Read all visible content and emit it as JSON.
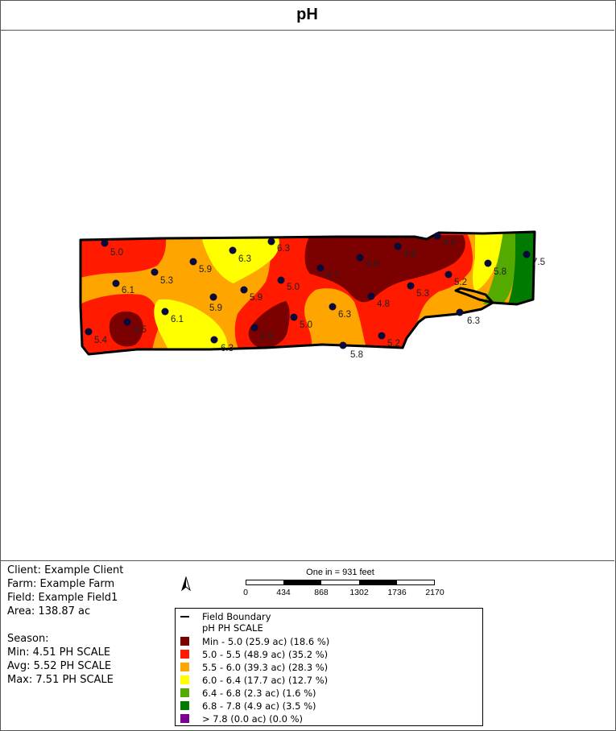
{
  "title": "pH",
  "map": {
    "sample_points": [
      {
        "label": "5.0"
      },
      {
        "label": "5.9"
      },
      {
        "label": "6.3"
      },
      {
        "label": "6.3"
      },
      {
        "label": "4.7"
      },
      {
        "label": "4.8"
      },
      {
        "label": "4.6"
      },
      {
        "label": "4.5"
      },
      {
        "label": "7.5"
      },
      {
        "label": "5.8"
      },
      {
        "label": "6.1"
      },
      {
        "label": "5.3"
      },
      {
        "label": "5.0"
      },
      {
        "label": "5.3"
      },
      {
        "label": "5.2"
      },
      {
        "label": "5.9"
      },
      {
        "label": "5.9"
      },
      {
        "label": "4.8"
      },
      {
        "label": "6.1"
      },
      {
        "label": "6.3"
      },
      {
        "label": "5.4"
      },
      {
        "label": "4.5"
      },
      {
        "label": "4.6"
      },
      {
        "label": "5.0"
      },
      {
        "label": "6.3"
      },
      {
        "label": "5.2"
      },
      {
        "label": "5.8"
      },
      {
        "label": "6.3"
      }
    ]
  },
  "info": {
    "client": "Client: Example Client",
    "farm": "Farm: Example Farm",
    "field": "Field: Example Field1",
    "area": "Area: 138.87 ac",
    "season": "Season:",
    "min": "Min: 4.51 PH SCALE",
    "avg": "Avg: 5.52 PH SCALE",
    "max": "Max: 7.51 PH SCALE"
  },
  "scale": {
    "caption": "One in = 931 feet",
    "ticks": [
      "0",
      "434",
      "868",
      "1302",
      "1736",
      "2170"
    ]
  },
  "legend": {
    "boundary_label": "Field Boundary",
    "subtitle": "pH PH SCALE",
    "classes": [
      {
        "label": "Min - 5.0 (25.9 ac) (18.6 %)",
        "color": "#7b0000"
      },
      {
        "label": "5.0 - 5.5 (48.9 ac) (35.2 %)",
        "color": "#ff1a00"
      },
      {
        "label": "5.5 - 6.0 (39.3 ac) (28.3 %)",
        "color": "#ffa500"
      },
      {
        "label": "6.0 - 6.4 (17.7 ac) (12.7 %)",
        "color": "#ffff00"
      },
      {
        "label": "6.4 - 6.8 (2.3 ac) (1.6 %)",
        "color": "#55aa00"
      },
      {
        "label": "6.8 - 7.8 (4.9 ac) (3.5 %)",
        "color": "#007a00"
      },
      {
        "label": "> 7.8 (0.0 ac) (0.0 %)",
        "color": "#7a0090"
      }
    ]
  }
}
